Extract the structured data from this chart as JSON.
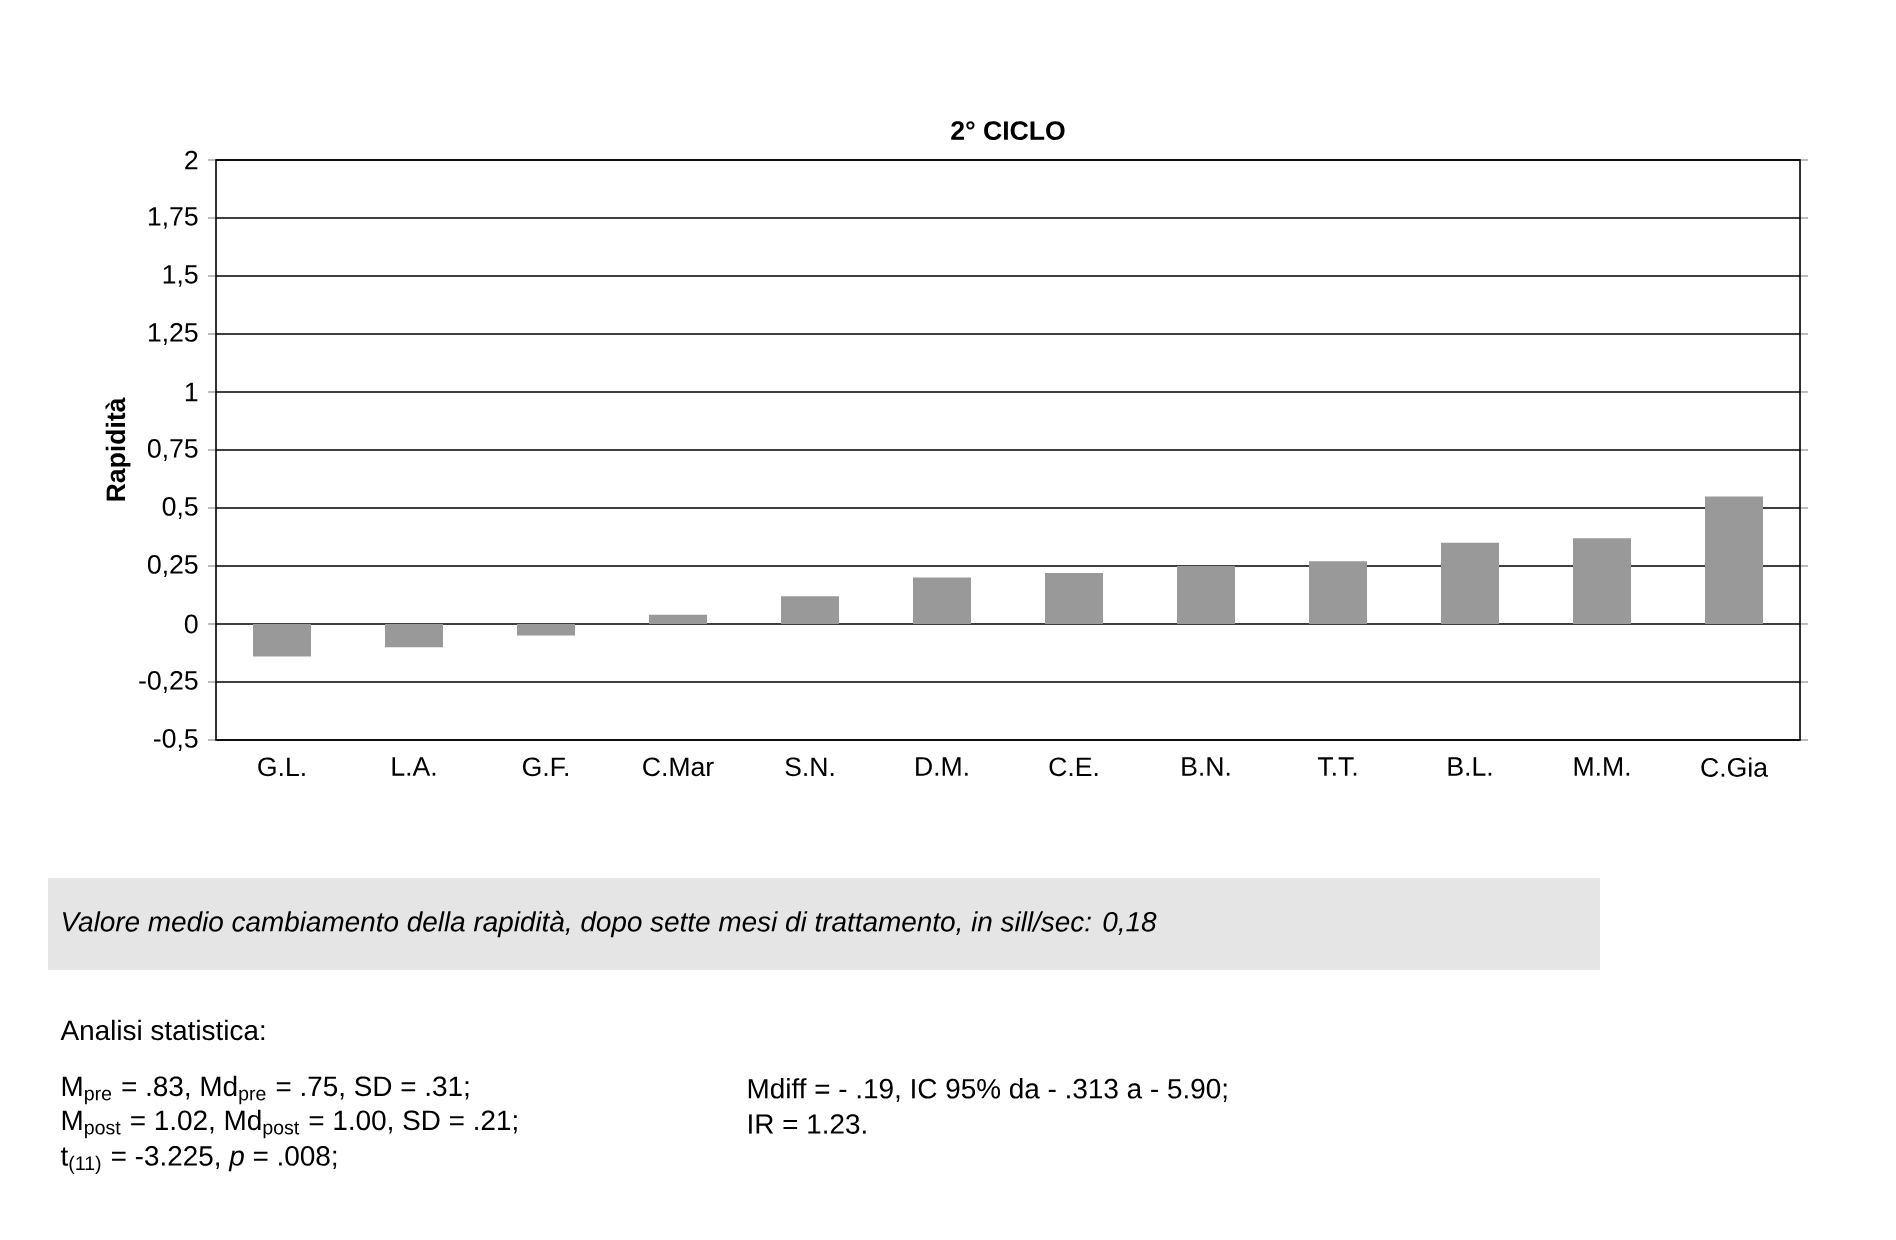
{
  "chart_data": {
    "type": "bar",
    "title": "2° CICLO",
    "ylabel": "Rapidità",
    "categories": [
      "G.L.",
      "L.A.",
      "G.F.",
      "C.Mar",
      "S.N.",
      "D.M.",
      "C.E.",
      "B.N.",
      "T.T.",
      "B.L.",
      "M.M.",
      "C.Gia"
    ],
    "values": [
      -0.14,
      -0.1,
      -0.05,
      0.04,
      0.12,
      0.2,
      0.22,
      0.25,
      0.27,
      0.35,
      0.37,
      0.55
    ],
    "color": "#999999",
    "ylim": [
      -0.5,
      2
    ],
    "yticks": [
      {
        "value": -0.5,
        "label": "-0,5"
      },
      {
        "value": -0.25,
        "label": "-0,25"
      },
      0,
      {
        "value": 0.25,
        "label": "0,25"
      },
      {
        "value": 0.5,
        "label": "0,5"
      },
      {
        "value": 0.75,
        "label": "0,75"
      },
      1,
      {
        "value": 1.25,
        "label": "1,25"
      },
      {
        "value": 1.5,
        "label": "1,5"
      },
      {
        "value": 1.75,
        "label": "1,75"
      },
      2
    ],
    "grid": "y",
    "annotations": [
      "*Valore medio cambiamento della rapidità, dopo sette mesi di trattamento, in sill/sec: 0,18*",
      "Analisi statistica:",
      "M$_{pre}$ = .83, Md$_{pre}$ = .75, SD = .31;",
      "Mdiff = - .19, IC 95% da - .313 a - 5.90;",
      "M$_{post}$ = 1.02, Md$_{post}$ = 1.00, SD = .21;",
      "IR = 1.23.",
      "t$_{(11)}$ = -3.225, *p* = .008;"
    ]
  }
}
